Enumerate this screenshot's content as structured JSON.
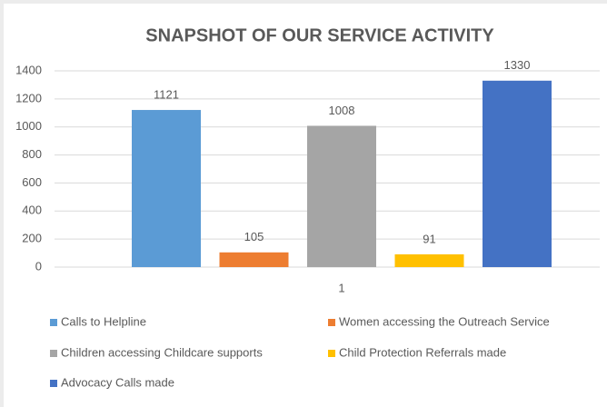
{
  "chart_data": {
    "type": "bar",
    "title": "SNAPSHOT OF OUR SERVICE ACTIVITY",
    "categories": [
      "1"
    ],
    "series": [
      {
        "name": "Calls to Helpline",
        "color": "#5b9bd5",
        "values": [
          1121
        ]
      },
      {
        "name": "Women accessing the Outreach Service",
        "color": "#ed7d31",
        "values": [
          105
        ]
      },
      {
        "name": "Children accessing Childcare supports",
        "color": "#a5a5a5",
        "values": [
          1008
        ]
      },
      {
        "name": "Child Protection Referrals made",
        "color": "#ffc000",
        "values": [
          91
        ]
      },
      {
        "name": "Advocacy Calls made",
        "color": "#4472c4",
        "values": [
          1330
        ]
      }
    ],
    "ylim": [
      0,
      1400
    ],
    "yticks": [
      0,
      200,
      400,
      600,
      800,
      1000,
      1200,
      1400
    ],
    "grid": true,
    "legend": "bottom"
  }
}
